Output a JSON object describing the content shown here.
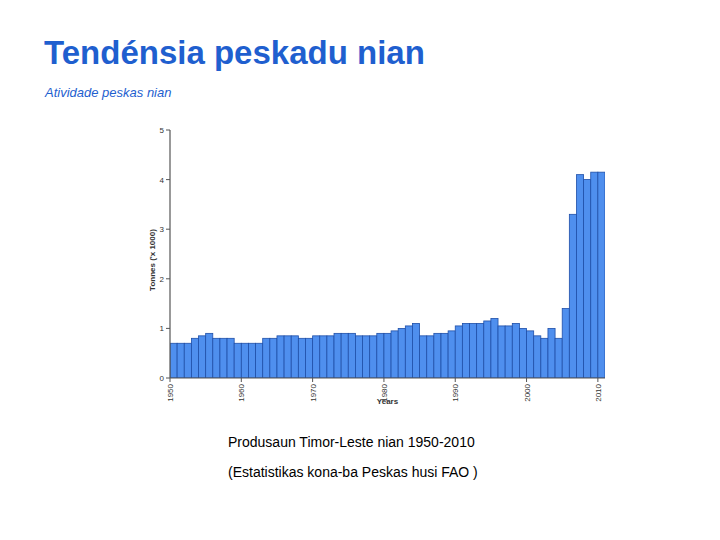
{
  "chart_data": {
    "type": "bar",
    "title": "Tendénsia peskadu nian",
    "subtitle": "Atividade peskas nian",
    "x_label": "Years",
    "y_label": "Tonnes ('x 1000)",
    "annotations": [
      "Produsaun Timor-Leste nian  1950-2010",
      "(Estatistikas kona-ba Peskas husi FAO )"
    ],
    "x": [
      1950,
      1951,
      1952,
      1953,
      1954,
      1955,
      1956,
      1957,
      1958,
      1959,
      1960,
      1961,
      1962,
      1963,
      1964,
      1965,
      1966,
      1967,
      1968,
      1969,
      1970,
      1971,
      1972,
      1973,
      1974,
      1975,
      1976,
      1977,
      1978,
      1979,
      1980,
      1981,
      1982,
      1983,
      1984,
      1985,
      1986,
      1987,
      1988,
      1989,
      1990,
      1991,
      1992,
      1993,
      1994,
      1995,
      1996,
      1997,
      1998,
      1999,
      2000,
      2001,
      2002,
      2003,
      2004,
      2005,
      2006,
      2007,
      2008,
      2009,
      2010
    ],
    "values": [
      0.7,
      0.7,
      0.7,
      0.8,
      0.85,
      0.9,
      0.8,
      0.8,
      0.8,
      0.7,
      0.7,
      0.7,
      0.7,
      0.8,
      0.8,
      0.85,
      0.85,
      0.85,
      0.8,
      0.8,
      0.85,
      0.85,
      0.85,
      0.9,
      0.9,
      0.9,
      0.85,
      0.85,
      0.85,
      0.9,
      0.9,
      0.95,
      1.0,
      1.05,
      1.1,
      0.85,
      0.85,
      0.9,
      0.9,
      0.95,
      1.05,
      1.1,
      1.1,
      1.1,
      1.15,
      1.2,
      1.05,
      1.05,
      1.1,
      1.0,
      0.95,
      0.85,
      0.8,
      1.0,
      0.8,
      1.4,
      3.3,
      4.1,
      4.0,
      4.15,
      4.15
    ],
    "color": "#4f8fee",
    "xlim": [
      1950,
      2011
    ],
    "xticks": [
      1950,
      1960,
      1970,
      1980,
      1990,
      2000,
      2010
    ],
    "ylim": [
      0,
      5
    ],
    "yticks": [
      0,
      1,
      2,
      3,
      4,
      5
    ],
    "grid": false
  }
}
